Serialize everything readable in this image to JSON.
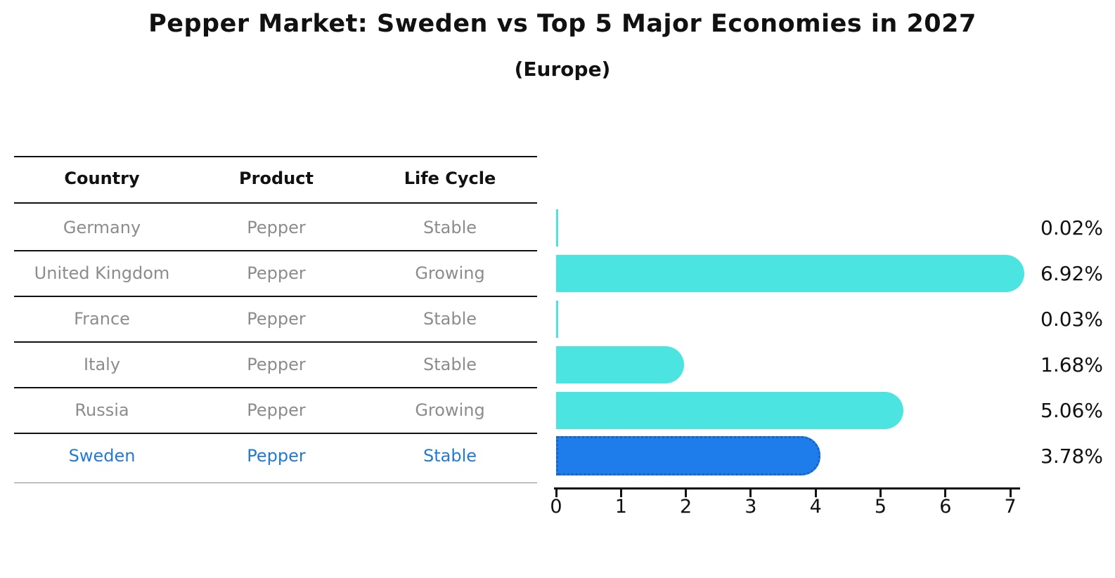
{
  "title": "Pepper Market: Sweden vs Top 5 Major Economies in 2027",
  "subtitle": "(Europe)",
  "table": {
    "headers": [
      "Country",
      "Product",
      "Life Cycle"
    ],
    "rows": [
      {
        "country": "Germany",
        "product": "Pepper",
        "life_cycle": "Stable",
        "share": "0.02%",
        "highlight": false
      },
      {
        "country": "United Kingdom",
        "product": "Pepper",
        "life_cycle": "Growing",
        "share": "6.92%",
        "highlight": false
      },
      {
        "country": "France",
        "product": "Pepper",
        "life_cycle": "Stable",
        "share": "0.03%",
        "highlight": false
      },
      {
        "country": "Italy",
        "product": "Pepper",
        "life_cycle": "Stable",
        "share": "1.68%",
        "highlight": false
      },
      {
        "country": "Russia",
        "product": "Pepper",
        "life_cycle": "Growing",
        "share": "5.06%",
        "highlight": false
      },
      {
        "country": "Sweden",
        "product": "Pepper",
        "life_cycle": "Stable",
        "share": "3.78%",
        "highlight": true
      }
    ]
  },
  "chart_data": {
    "type": "bar",
    "orientation": "horizontal",
    "title": "Pepper Market: Sweden vs Top 5 Major Economies in 2027",
    "subtitle": "(Europe)",
    "categories": [
      "Germany",
      "United Kingdom",
      "France",
      "Italy",
      "Russia",
      "Sweden"
    ],
    "values": [
      0.02,
      6.92,
      0.03,
      1.68,
      5.06,
      3.78
    ],
    "labels": [
      "0.02%",
      "6.92%",
      "0.03%",
      "1.68%",
      "5.06%",
      "3.78%"
    ],
    "xticks": [
      0,
      1,
      2,
      3,
      4,
      5,
      6,
      7
    ],
    "xlim": [
      0,
      7.25
    ],
    "grid": false,
    "legend": false,
    "highlight_index": 5
  },
  "colors": {
    "bar": "#4BE4E0",
    "highlight_bar": "#1E7DEB",
    "highlight_border": "#1464CC",
    "highlight_text": "#1F7AD8",
    "table_text": "#8C8C8C",
    "axis": "#111111"
  }
}
